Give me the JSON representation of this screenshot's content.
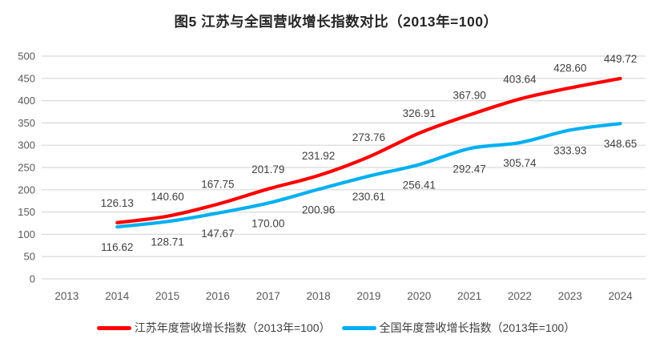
{
  "chart_data": {
    "type": "line",
    "title": "图5  江苏与全国营收增长指数对比（2013年=100）",
    "categories": [
      "2013",
      "2014",
      "2015",
      "2016",
      "2017",
      "2018",
      "2019",
      "2020",
      "2021",
      "2022",
      "2023",
      "2024"
    ],
    "series": [
      {
        "name": "江苏年度营收增长指数（2013年=100）",
        "color": "#FF0000",
        "label_position": "above",
        "values": [
          null,
          126.13,
          140.6,
          167.75,
          201.79,
          231.92,
          273.76,
          326.91,
          367.9,
          403.64,
          428.6,
          449.72
        ]
      },
      {
        "name": "全国年度营收增长指数（2013年=100）",
        "color": "#00B0F0",
        "label_position": "below",
        "values": [
          null,
          116.62,
          128.71,
          147.67,
          170.0,
          200.96,
          230.61,
          256.41,
          292.47,
          305.74,
          333.93,
          348.65
        ]
      }
    ],
    "ylim": [
      0,
      500
    ],
    "ytick_step": 50,
    "yticks": [
      "0",
      "50",
      "100",
      "150",
      "200",
      "250",
      "300",
      "350",
      "400",
      "450",
      "500"
    ],
    "grid": "horizontal-only",
    "legend_position": "bottom",
    "colors": {
      "gridline": "#D9D9D9",
      "axis_label": "#595959",
      "data_label": "#404040",
      "title": "#262626",
      "legend_text": "#404040",
      "background": "#FFFFFF"
    }
  }
}
